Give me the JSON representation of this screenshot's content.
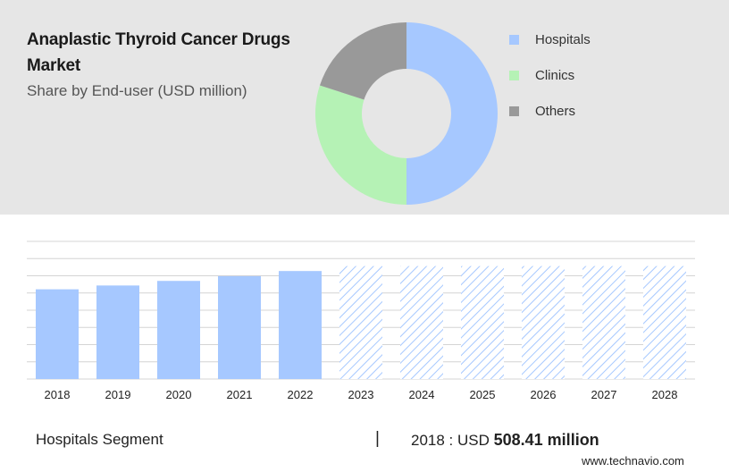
{
  "header": {
    "title": "Anaplastic Thyroid Cancer Drugs Market",
    "subtitle": "Share by End-user (USD million)"
  },
  "colors": {
    "hospitals": "#a6c8ff",
    "clinics": "#b5f2b5",
    "others": "#999999",
    "forecast_hatch": "#a6c8ff",
    "grid": "#d4d4d4",
    "top_panel": "#e6e6e6"
  },
  "chart_data": [
    {
      "type": "pie",
      "title": "Share by End-user (USD million)",
      "donut": true,
      "legend_position": "right",
      "categories": [
        "Hospitals",
        "Clinics",
        "Others"
      ],
      "values": [
        50,
        30,
        20
      ],
      "colors": [
        "#a6c8ff",
        "#b5f2b5",
        "#999999"
      ]
    },
    {
      "type": "bar",
      "title": "",
      "categories": [
        "2018",
        "2019",
        "2020",
        "2021",
        "2022",
        "2023",
        "2024",
        "2025",
        "2026",
        "2027",
        "2028"
      ],
      "series": [
        {
          "name": "Hospitals",
          "values": [
            508.41,
            530,
            556,
            583,
            612,
            640,
            640,
            640,
            640,
            640,
            640
          ]
        }
      ],
      "forecast_from": "2023",
      "forecast_style": "hatched",
      "ylim": [
        0,
        780
      ],
      "grid": true,
      "y_ticks_shown": false
    }
  ],
  "footer": {
    "segment_label": "Hospitals Segment",
    "separator": "|",
    "year_prefix": "2018 : USD",
    "value_text": "508.41 million",
    "website": "www.technavio.com"
  }
}
